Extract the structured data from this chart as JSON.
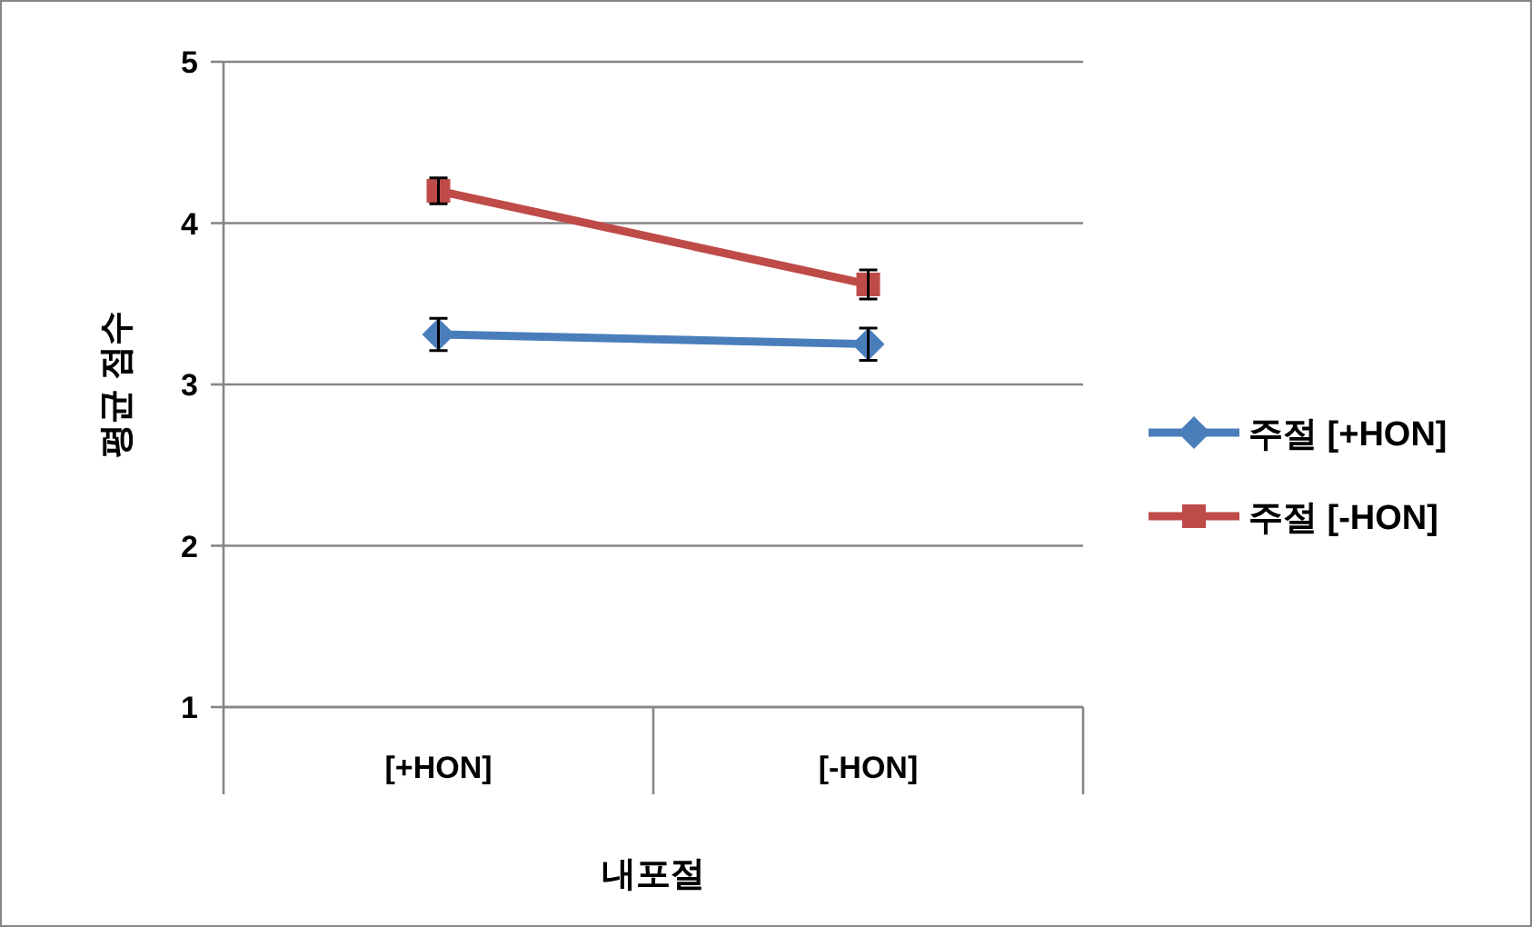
{
  "chart_data": {
    "type": "line",
    "ylabel": "평균 점수",
    "xlabel": "내포절",
    "categories": [
      "[+HON]",
      "[-HON]"
    ],
    "series": [
      {
        "name": "주절 [+HON]",
        "color": "#4a7ebb",
        "marker": "diamond",
        "values": [
          3.31,
          3.25
        ],
        "errors": [
          0.1,
          0.1
        ]
      },
      {
        "name": "주절 [-HON]",
        "color": "#be4b48",
        "marker": "square",
        "values": [
          4.2,
          3.62
        ],
        "errors": [
          0.08,
          0.09
        ]
      }
    ],
    "ylim": [
      1,
      5
    ],
    "yticks": [
      1,
      2,
      3,
      4,
      5
    ],
    "grid": "y",
    "legend": "right",
    "line_style": "solid"
  }
}
